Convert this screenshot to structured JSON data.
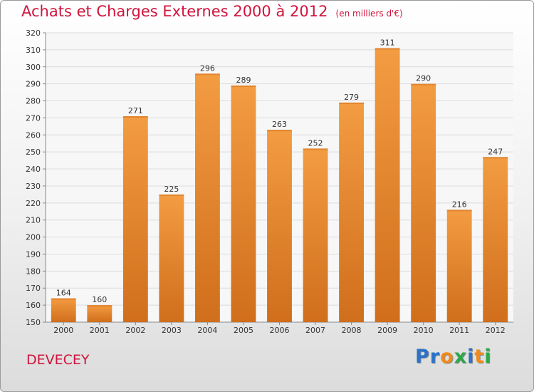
{
  "title": "Achats et Charges Externes 2000 à 2012",
  "unit_note": "(en milliers d'€)",
  "place": "DEVECEY",
  "logo": {
    "letters": [
      {
        "ch": "P",
        "color": "#2a73c8"
      },
      {
        "ch": "r",
        "color": "#2a73c8"
      },
      {
        "ch": "o",
        "color": "#f08a1c"
      },
      {
        "ch": "x",
        "color": "#2da84a"
      },
      {
        "ch": "i",
        "color": "#2a73c8"
      },
      {
        "ch": "t",
        "color": "#f08a1c"
      },
      {
        "ch": "i",
        "color": "#2da84a"
      }
    ]
  },
  "chart_data": {
    "type": "bar",
    "title": "Achats et Charges Externes 2000 à 2012",
    "subtitle": "(en milliers d'€)",
    "xlabel": "",
    "ylabel": "",
    "categories": [
      "2000",
      "2001",
      "2002",
      "2003",
      "2004",
      "2005",
      "2006",
      "2007",
      "2008",
      "2009",
      "2010",
      "2011",
      "2012"
    ],
    "values": [
      164,
      160,
      271,
      225,
      296,
      289,
      263,
      252,
      279,
      311,
      290,
      216,
      247
    ],
    "ylim": [
      150,
      320
    ],
    "yticks": [
      150,
      160,
      170,
      180,
      190,
      200,
      210,
      220,
      230,
      240,
      250,
      260,
      270,
      280,
      290,
      300,
      310,
      320
    ],
    "grid": true,
    "bar_color": "#f39c42",
    "bar_color_dark": "#d06e1c"
  }
}
